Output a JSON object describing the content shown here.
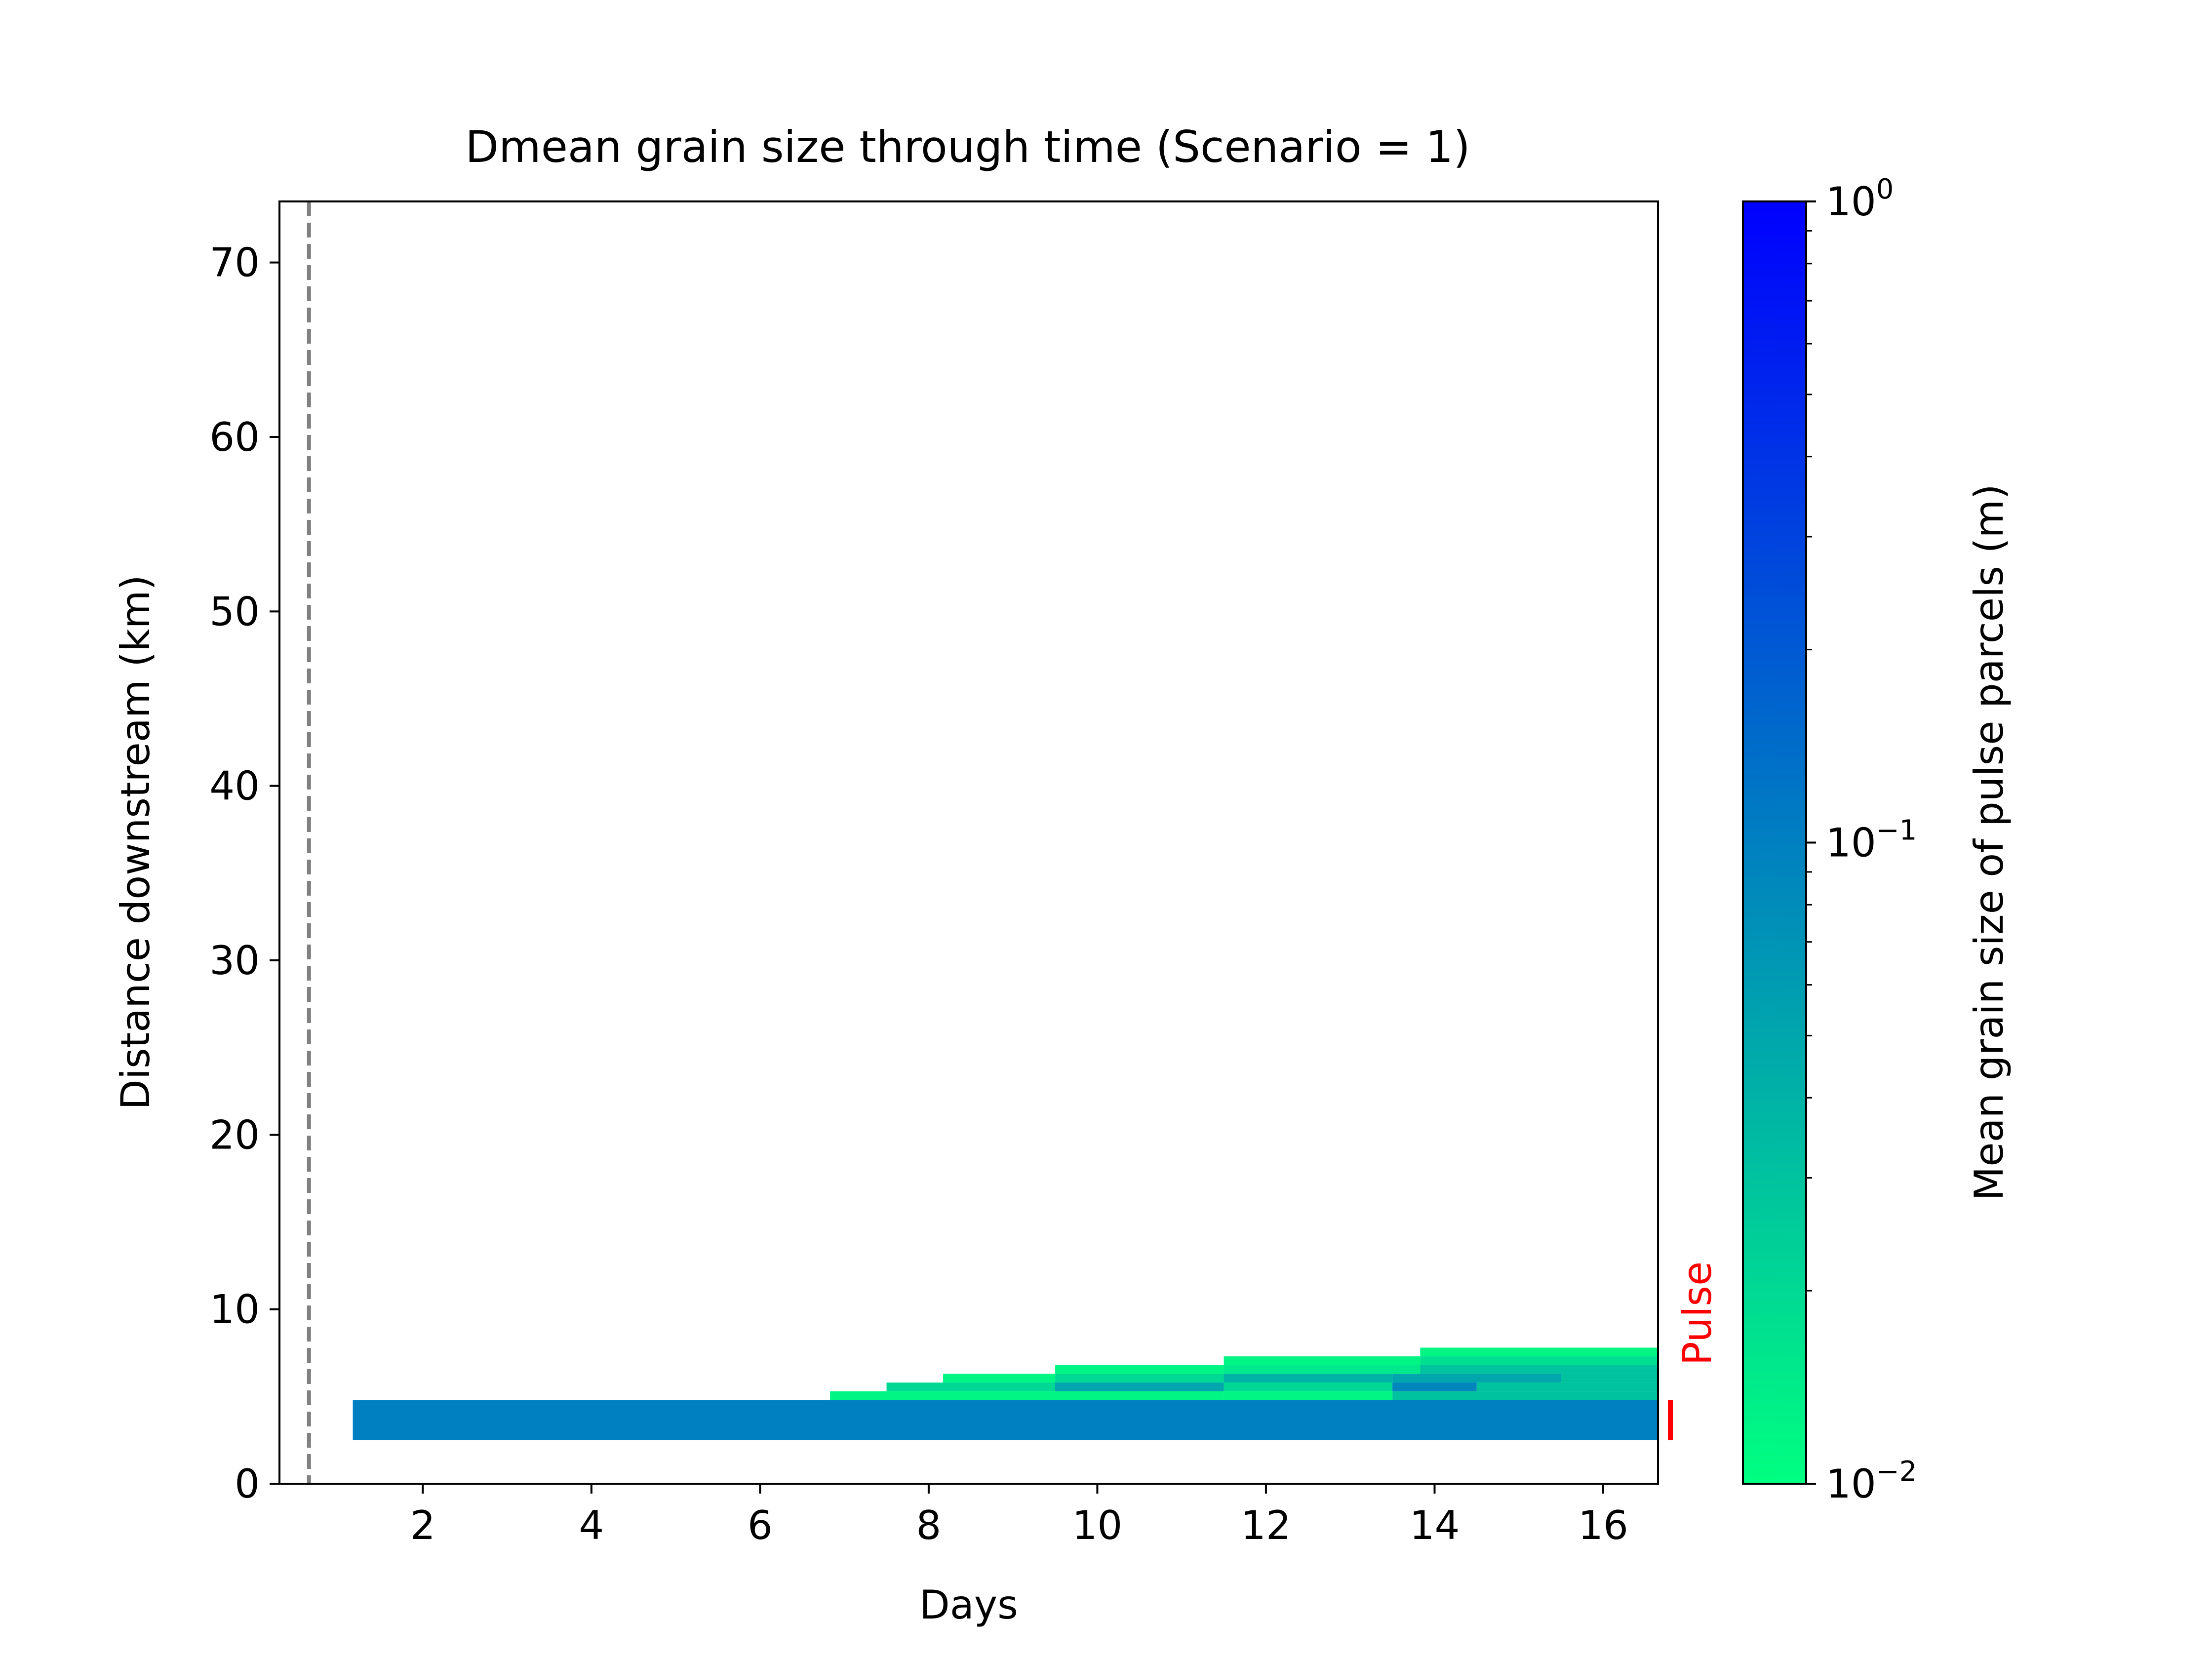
{
  "chart_data": {
    "type": "heatmap",
    "title": "Dmean grain size through time (Scenario = 1)",
    "xlabel": "Days",
    "ylabel": "Distance downstream (km)",
    "xlim": [
      0.3,
      16.65
    ],
    "ylim": [
      0,
      73.5
    ],
    "xticks": [
      2,
      4,
      6,
      8,
      10,
      12,
      14,
      16
    ],
    "xtick_labels": [
      "2",
      "4",
      "6",
      "8",
      "10",
      "12",
      "14",
      "16"
    ],
    "yticks": [
      0,
      10,
      20,
      30,
      40,
      50,
      60,
      70
    ],
    "ytick_labels": [
      "0",
      "10",
      "20",
      "30",
      "40",
      "50",
      "60",
      "70"
    ],
    "grid": false,
    "colorbar": {
      "label": "Mean grain size of pulse parcels (m)",
      "scale": "log",
      "range": [
        0.01,
        1
      ],
      "colormap": [
        "#00ff80",
        "#0080c0",
        "#0000ff"
      ],
      "ticks": [
        {
          "value": 1,
          "base": "10",
          "exp": "0"
        },
        {
          "value": 0.1,
          "base": "10",
          "exp": "−1"
        },
        {
          "value": 0.01,
          "base": "10",
          "exp": "−2"
        }
      ]
    },
    "vline": {
      "x": 0.65,
      "style": "dashed",
      "color": "#808080"
    },
    "pulse_marker": {
      "label": "Pulse",
      "y_range": [
        2.5,
        4.8
      ],
      "color": "#ff0000"
    },
    "cells": [
      {
        "x0": 1.17,
        "x1": 16.65,
        "y0": 2.5,
        "y1": 4.8,
        "d": 0.1
      },
      {
        "x0": 6.83,
        "x1": 11.5,
        "y0": 4.8,
        "y1": 5.3,
        "d": 0.012
      },
      {
        "x0": 11.5,
        "x1": 13.5,
        "y0": 4.8,
        "y1": 5.3,
        "d": 0.012
      },
      {
        "x0": 13.5,
        "x1": 16.65,
        "y0": 4.8,
        "y1": 5.3,
        "d": 0.03
      },
      {
        "x0": 7.5,
        "x1": 9.5,
        "y0": 5.3,
        "y1": 5.8,
        "d": 0.02
      },
      {
        "x0": 9.5,
        "x1": 11.5,
        "y0": 5.3,
        "y1": 5.8,
        "d": 0.05
      },
      {
        "x0": 11.5,
        "x1": 13.5,
        "y0": 5.3,
        "y1": 5.8,
        "d": 0.02
      },
      {
        "x0": 13.5,
        "x1": 14.5,
        "y0": 5.3,
        "y1": 5.8,
        "d": 0.09
      },
      {
        "x0": 14.5,
        "x1": 16.65,
        "y0": 5.3,
        "y1": 5.8,
        "d": 0.03
      },
      {
        "x0": 8.17,
        "x1": 9.5,
        "y0": 5.8,
        "y1": 6.3,
        "d": 0.012
      },
      {
        "x0": 9.5,
        "x1": 11.5,
        "y0": 5.8,
        "y1": 6.3,
        "d": 0.02
      },
      {
        "x0": 11.5,
        "x1": 13.5,
        "y0": 5.8,
        "y1": 6.3,
        "d": 0.04
      },
      {
        "x0": 13.5,
        "x1": 15.5,
        "y0": 5.8,
        "y1": 6.3,
        "d": 0.05
      },
      {
        "x0": 15.5,
        "x1": 16.65,
        "y0": 5.8,
        "y1": 6.3,
        "d": 0.03
      },
      {
        "x0": 9.5,
        "x1": 11.5,
        "y0": 6.3,
        "y1": 6.8,
        "d": 0.012
      },
      {
        "x0": 11.5,
        "x1": 13.83,
        "y0": 6.3,
        "y1": 6.8,
        "d": 0.015
      },
      {
        "x0": 13.83,
        "x1": 16.65,
        "y0": 6.3,
        "y1": 6.8,
        "d": 0.03
      },
      {
        "x0": 11.5,
        "x1": 13.83,
        "y0": 6.8,
        "y1": 7.3,
        "d": 0.012
      },
      {
        "x0": 13.83,
        "x1": 16.65,
        "y0": 6.8,
        "y1": 7.3,
        "d": 0.018
      },
      {
        "x0": 13.83,
        "x1": 16.65,
        "y0": 7.3,
        "y1": 7.8,
        "d": 0.012
      }
    ]
  }
}
